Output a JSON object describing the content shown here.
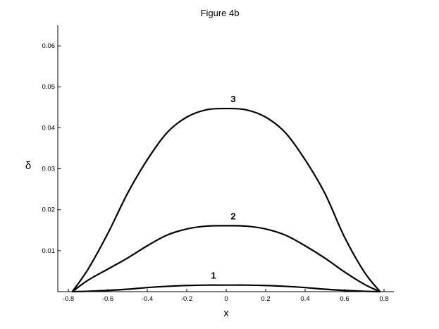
{
  "chart_data": {
    "type": "line",
    "title": "Figure 4b",
    "xlabel": "x",
    "ylabel": "δ",
    "xlim": [
      -0.8,
      0.8
    ],
    "ylim": [
      0,
      0.065
    ],
    "xticks": [
      -0.8,
      -0.6,
      -0.4,
      -0.2,
      0,
      0.2,
      0.4,
      0.6,
      0.8
    ],
    "xtick_labels": [
      "-0.8",
      "-0.6",
      "-0.4",
      "-0.2",
      "0",
      "0.2",
      "0.4",
      "0.6",
      "0.8"
    ],
    "yticks": [
      0.01,
      0.02,
      0.03,
      0.04,
      0.05,
      0.06
    ],
    "ytick_labels": [
      "0.01",
      "0.02",
      "0.03",
      "0.04",
      "0.05",
      "0.06"
    ],
    "grid": false,
    "series": [
      {
        "name": "1",
        "x": [
          -0.78,
          -0.7,
          -0.6,
          -0.5,
          -0.4,
          -0.3,
          -0.2,
          -0.1,
          0,
          0.1,
          0.2,
          0.3,
          0.4,
          0.5,
          0.6,
          0.7,
          0.78
        ],
        "y": [
          0,
          0.0001,
          0.0003,
          0.0006,
          0.001,
          0.0013,
          0.0015,
          0.0016,
          0.0016,
          0.0016,
          0.0015,
          0.0013,
          0.001,
          0.0006,
          0.0003,
          0.0001,
          0
        ]
      },
      {
        "name": "2",
        "x": [
          -0.78,
          -0.7,
          -0.6,
          -0.5,
          -0.4,
          -0.3,
          -0.2,
          -0.1,
          0,
          0.1,
          0.2,
          0.3,
          0.4,
          0.5,
          0.6,
          0.7,
          0.78
        ],
        "y": [
          0,
          0.0028,
          0.0055,
          0.0082,
          0.0112,
          0.0138,
          0.0153,
          0.016,
          0.0161,
          0.016,
          0.0153,
          0.0138,
          0.0112,
          0.0082,
          0.0048,
          0.0018,
          0
        ]
      },
      {
        "name": "3",
        "x": [
          -0.78,
          -0.7,
          -0.6,
          -0.5,
          -0.4,
          -0.3,
          -0.2,
          -0.1,
          0,
          0.1,
          0.2,
          0.3,
          0.4,
          0.5,
          0.6,
          0.7,
          0.78
        ],
        "y": [
          0,
          0.0055,
          0.0142,
          0.024,
          0.0322,
          0.0388,
          0.0426,
          0.0444,
          0.0447,
          0.0444,
          0.0426,
          0.0388,
          0.0322,
          0.024,
          0.0133,
          0.0048,
          0
        ]
      }
    ]
  }
}
